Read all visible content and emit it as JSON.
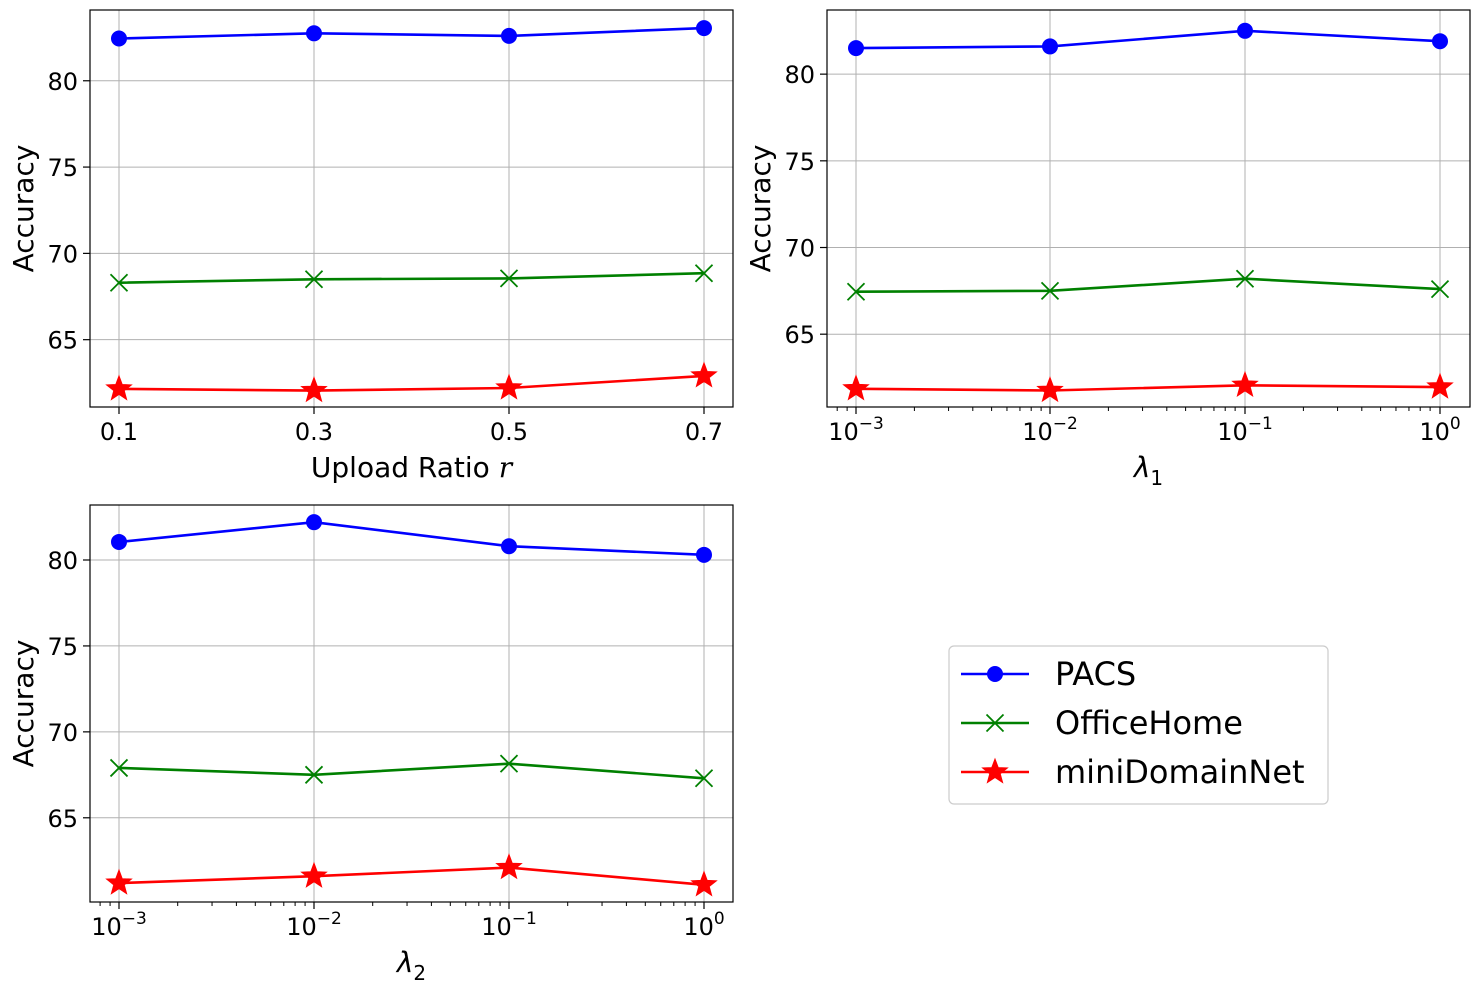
{
  "chart_data": [
    {
      "type": "line",
      "xscale": "linear",
      "categories": [
        "0.1",
        "0.3",
        "0.5",
        "0.7"
      ],
      "xlabel": "Upload Ratio r",
      "ylabel": "Accuracy",
      "yticks": [
        "65",
        "70",
        "75",
        "80"
      ],
      "ylim": [
        61.1,
        84.1
      ],
      "grid": true,
      "series": [
        {
          "name": "PACS",
          "values": [
            82.45,
            82.75,
            82.6,
            83.05
          ]
        },
        {
          "name": "OfficeHome",
          "values": [
            68.3,
            68.5,
            68.55,
            68.85
          ]
        },
        {
          "name": "miniDomainNet",
          "values": [
            62.15,
            62.05,
            62.2,
            62.9
          ]
        }
      ]
    },
    {
      "type": "line",
      "xscale": "log",
      "categories": [
        "10^-3",
        "10^-2",
        "10^-1",
        "10^0"
      ],
      "xlabel": "λ1",
      "ylabel": "Accuracy",
      "yticks": [
        "65",
        "70",
        "75",
        "80"
      ],
      "ylim": [
        60.8,
        83.7
      ],
      "grid": true,
      "series": [
        {
          "name": "PACS",
          "values": [
            81.5,
            81.6,
            82.5,
            81.9
          ]
        },
        {
          "name": "OfficeHome",
          "values": [
            67.45,
            67.5,
            68.2,
            67.6
          ]
        },
        {
          "name": "miniDomainNet",
          "values": [
            61.85,
            61.75,
            62.05,
            61.95
          ]
        }
      ]
    },
    {
      "type": "line",
      "xscale": "log",
      "categories": [
        "10^-3",
        "10^-2",
        "10^-1",
        "10^0"
      ],
      "xlabel": "λ2",
      "ylabel": "Accuracy",
      "yticks": [
        "65",
        "70",
        "75",
        "80"
      ],
      "ylim": [
        60.1,
        83.2
      ],
      "grid": true,
      "series": [
        {
          "name": "PACS",
          "values": [
            81.05,
            82.2,
            80.8,
            80.3
          ]
        },
        {
          "name": "OfficeHome",
          "values": [
            67.9,
            67.5,
            68.15,
            67.3
          ]
        },
        {
          "name": "miniDomainNet",
          "values": [
            61.2,
            61.6,
            62.1,
            61.1
          ]
        }
      ]
    }
  ],
  "legend": {
    "placement": "lower-right",
    "entries": [
      {
        "name": "PACS",
        "color": "#0000ff",
        "marker": "circle"
      },
      {
        "name": "OfficeHome",
        "color": "#008000",
        "marker": "x"
      },
      {
        "name": "miniDomainNet",
        "color": "#ff0000",
        "marker": "star"
      }
    ]
  }
}
